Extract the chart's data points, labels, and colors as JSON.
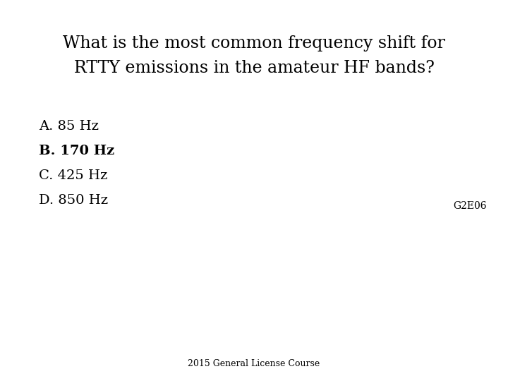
{
  "title_line1": "What is the most common frequency shift for",
  "title_line2": "RTTY emissions in the amateur HF bands?",
  "options": [
    {
      "label": "A.",
      "text": " 85 Hz",
      "bold": false
    },
    {
      "label": "B.",
      "text": " 170 Hz",
      "bold": true
    },
    {
      "label": "C.",
      "text": " 425 Hz",
      "bold": false
    },
    {
      "label": "D.",
      "text": " 850 Hz",
      "bold": false
    }
  ],
  "reference": "G2E06",
  "footer": "2015 General License Course",
  "background_color": "#ffffff",
  "text_color": "#000000",
  "title_fontsize": 17,
  "option_fontsize": 14,
  "reference_fontsize": 10,
  "footer_fontsize": 9,
  "font_family": "DejaVu Serif"
}
